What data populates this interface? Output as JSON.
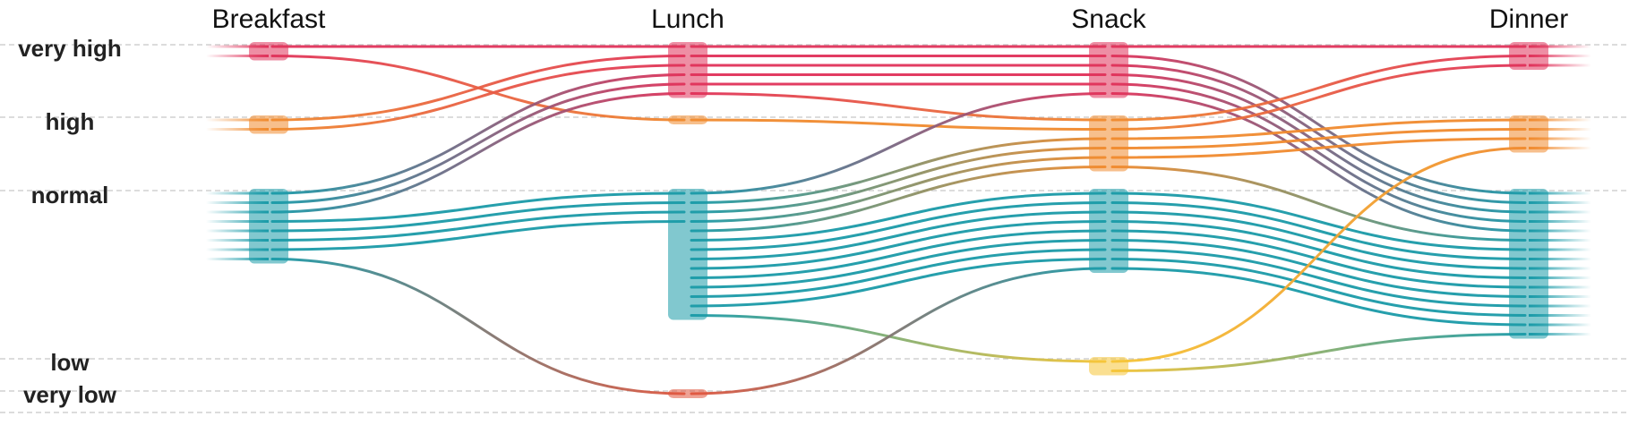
{
  "chart_data": {
    "type": "parallel-sets",
    "columns": [
      "Breakfast",
      "Lunch",
      "Snack",
      "Dinner"
    ],
    "levels": [
      "very high",
      "high",
      "normal",
      "low",
      "very low"
    ],
    "colors": {
      "very high": "#e0325a",
      "high": "#f08a2e",
      "normal": "#1a9aa8",
      "low": "#f5c436",
      "very low": "#e0563e"
    },
    "grid": true,
    "counts": {
      "Breakfast": {
        "very high": 2,
        "high": 2,
        "normal": 8,
        "low": 0,
        "very low": 0
      },
      "Lunch": {
        "very high": 6,
        "high": 1,
        "normal": 14,
        "low": 0,
        "very low": 1
      },
      "Snack": {
        "very high": 6,
        "high": 6,
        "normal": 9,
        "low": 2,
        "very low": 0
      },
      "Dinner": {
        "very high": 3,
        "high": 4,
        "normal": 16,
        "low": 0,
        "very low": 0
      }
    },
    "flows": [
      {
        "from": "Breakfast",
        "to": "Lunch",
        "source": "very high",
        "target": "very high",
        "count": 1
      },
      {
        "from": "Breakfast",
        "to": "Lunch",
        "source": "very high",
        "target": "high",
        "count": 1
      },
      {
        "from": "Breakfast",
        "to": "Lunch",
        "source": "high",
        "target": "very high",
        "count": 2
      },
      {
        "from": "Breakfast",
        "to": "Lunch",
        "source": "normal",
        "target": "very high",
        "count": 3
      },
      {
        "from": "Breakfast",
        "to": "Lunch",
        "source": "normal",
        "target": "normal",
        "count": 4
      },
      {
        "from": "Breakfast",
        "to": "Lunch",
        "source": "normal",
        "target": "very low",
        "count": 1
      },
      {
        "from": "Lunch",
        "to": "Snack",
        "source": "very high",
        "target": "very high",
        "count": 5
      },
      {
        "from": "Lunch",
        "to": "Snack",
        "source": "very high",
        "target": "high",
        "count": 1
      },
      {
        "from": "Lunch",
        "to": "Snack",
        "source": "high",
        "target": "high",
        "count": 1
      },
      {
        "from": "Lunch",
        "to": "Snack",
        "source": "normal",
        "target": "very high",
        "count": 1
      },
      {
        "from": "Lunch",
        "to": "Snack",
        "source": "normal",
        "target": "high",
        "count": 4
      },
      {
        "from": "Lunch",
        "to": "Snack",
        "source": "normal",
        "target": "normal",
        "count": 8
      },
      {
        "from": "Lunch",
        "to": "Snack",
        "source": "normal",
        "target": "low",
        "count": 1
      },
      {
        "from": "Lunch",
        "to": "Snack",
        "source": "very low",
        "target": "normal",
        "count": 1
      },
      {
        "from": "Snack",
        "to": "Dinner",
        "source": "very high",
        "target": "very high",
        "count": 1
      },
      {
        "from": "Snack",
        "to": "Dinner",
        "source": "very high",
        "target": "normal",
        "count": 5
      },
      {
        "from": "Snack",
        "to": "Dinner",
        "source": "high",
        "target": "very high",
        "count": 2
      },
      {
        "from": "Snack",
        "to": "Dinner",
        "source": "high",
        "target": "high",
        "count": 3
      },
      {
        "from": "Snack",
        "to": "Dinner",
        "source": "high",
        "target": "normal",
        "count": 1
      },
      {
        "from": "Snack",
        "to": "Dinner",
        "source": "normal",
        "target": "normal",
        "count": 9
      },
      {
        "from": "Snack",
        "to": "Dinner",
        "source": "low",
        "target": "high",
        "count": 1
      },
      {
        "from": "Snack",
        "to": "Dinner",
        "source": "low",
        "target": "normal",
        "count": 1
      }
    ]
  }
}
